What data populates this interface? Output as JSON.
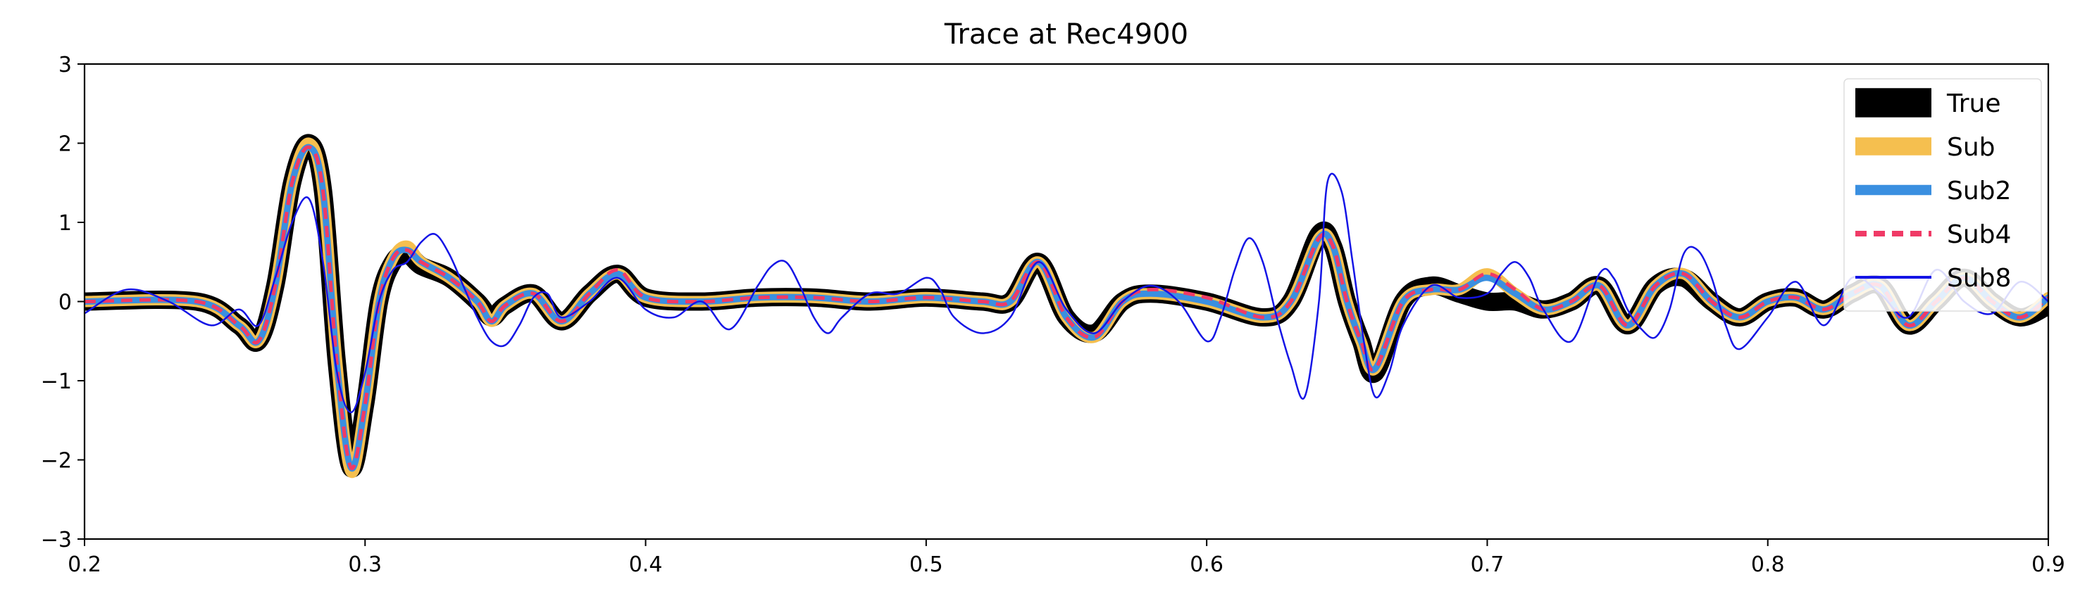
{
  "chart_data": {
    "type": "line",
    "title": "Trace at Rec4900",
    "xlabel": "",
    "ylabel": "",
    "xlim": [
      0.2,
      0.9
    ],
    "ylim": [
      -3,
      3
    ],
    "x_ticks": [
      "0.2",
      "0.3",
      "0.4",
      "0.5",
      "0.6",
      "0.7",
      "0.8",
      "0.9"
    ],
    "y_ticks": [
      "−3",
      "−2",
      "−1",
      "0",
      "1",
      "2",
      "3"
    ],
    "legend_position": "top-right",
    "grid": false,
    "series": [
      {
        "name": "True",
        "color": "#000000",
        "style": "solid-thick",
        "x": [
          0.2,
          0.24,
          0.255,
          0.262,
          0.268,
          0.274,
          0.28,
          0.285,
          0.29,
          0.295,
          0.3,
          0.305,
          0.31,
          0.315,
          0.32,
          0.33,
          0.34,
          0.345,
          0.35,
          0.36,
          0.37,
          0.38,
          0.39,
          0.4,
          0.42,
          0.44,
          0.46,
          0.48,
          0.5,
          0.52,
          0.53,
          0.54,
          0.55,
          0.56,
          0.57,
          0.58,
          0.6,
          0.62,
          0.63,
          0.64,
          0.645,
          0.65,
          0.655,
          0.66,
          0.67,
          0.68,
          0.69,
          0.7,
          0.71,
          0.72,
          0.73,
          0.74,
          0.75,
          0.76,
          0.77,
          0.78,
          0.79,
          0.8,
          0.81,
          0.82,
          0.83,
          0.84,
          0.85,
          0.86,
          0.87,
          0.88,
          0.89,
          0.9
        ],
        "y": [
          0.0,
          0.0,
          -0.3,
          -0.5,
          0.2,
          1.5,
          2.0,
          1.4,
          -0.8,
          -2.1,
          -1.3,
          0.0,
          0.5,
          0.6,
          0.45,
          0.3,
          0.0,
          -0.2,
          -0.05,
          0.1,
          -0.25,
          0.1,
          0.35,
          0.05,
          0.0,
          0.05,
          0.05,
          0.0,
          0.05,
          0.0,
          0.0,
          0.5,
          -0.2,
          -0.4,
          0.0,
          0.1,
          0.0,
          -0.2,
          0.0,
          0.85,
          0.7,
          0.0,
          -0.5,
          -0.9,
          0.0,
          0.2,
          0.1,
          0.0,
          0.0,
          -0.1,
          0.0,
          0.2,
          -0.3,
          0.2,
          0.3,
          0.0,
          -0.2,
          0.0,
          0.05,
          -0.1,
          0.1,
          0.2,
          -0.3,
          0.0,
          0.3,
          0.0,
          -0.2,
          -0.05
        ]
      },
      {
        "name": "Sub",
        "color": "#f5bf4f",
        "style": "solid-medium",
        "x": [
          0.2,
          0.24,
          0.255,
          0.262,
          0.268,
          0.274,
          0.28,
          0.285,
          0.29,
          0.295,
          0.3,
          0.305,
          0.31,
          0.315,
          0.32,
          0.33,
          0.34,
          0.345,
          0.35,
          0.36,
          0.37,
          0.38,
          0.39,
          0.4,
          0.42,
          0.44,
          0.46,
          0.48,
          0.5,
          0.52,
          0.53,
          0.54,
          0.55,
          0.56,
          0.57,
          0.58,
          0.6,
          0.62,
          0.63,
          0.64,
          0.645,
          0.65,
          0.655,
          0.66,
          0.67,
          0.68,
          0.69,
          0.7,
          0.71,
          0.72,
          0.73,
          0.74,
          0.75,
          0.76,
          0.77,
          0.78,
          0.79,
          0.8,
          0.81,
          0.82,
          0.83,
          0.84,
          0.85,
          0.86,
          0.87,
          0.88,
          0.89,
          0.9
        ],
        "y": [
          0.0,
          0.0,
          -0.3,
          -0.5,
          0.2,
          1.5,
          2.0,
          1.4,
          -0.8,
          -2.15,
          -1.3,
          0.0,
          0.55,
          0.7,
          0.5,
          0.3,
          0.0,
          -0.25,
          -0.05,
          0.1,
          -0.25,
          0.1,
          0.35,
          0.05,
          0.0,
          0.05,
          0.05,
          0.0,
          0.05,
          0.0,
          0.0,
          0.5,
          -0.2,
          -0.45,
          0.0,
          0.1,
          0.0,
          -0.2,
          0.0,
          0.8,
          0.7,
          0.0,
          -0.5,
          -0.85,
          0.0,
          0.15,
          0.15,
          0.35,
          0.1,
          -0.1,
          0.0,
          0.2,
          -0.3,
          0.2,
          0.35,
          0.0,
          -0.2,
          0.0,
          0.05,
          -0.1,
          0.1,
          0.2,
          -0.3,
          0.0,
          0.3,
          0.0,
          -0.2,
          0.05
        ]
      },
      {
        "name": "Sub2",
        "color": "#3a8fe0",
        "style": "solid-thin",
        "x": [
          0.2,
          0.24,
          0.255,
          0.262,
          0.268,
          0.274,
          0.28,
          0.285,
          0.29,
          0.295,
          0.3,
          0.305,
          0.31,
          0.315,
          0.32,
          0.33,
          0.34,
          0.345,
          0.35,
          0.36,
          0.37,
          0.38,
          0.39,
          0.4,
          0.42,
          0.44,
          0.46,
          0.48,
          0.5,
          0.52,
          0.53,
          0.54,
          0.55,
          0.56,
          0.57,
          0.58,
          0.6,
          0.62,
          0.63,
          0.64,
          0.645,
          0.65,
          0.655,
          0.66,
          0.67,
          0.68,
          0.69,
          0.7,
          0.71,
          0.72,
          0.73,
          0.74,
          0.75,
          0.76,
          0.77,
          0.78,
          0.79,
          0.8,
          0.81,
          0.82,
          0.83,
          0.84,
          0.85,
          0.86,
          0.87,
          0.88,
          0.89,
          0.9
        ],
        "y": [
          0.0,
          0.0,
          -0.3,
          -0.5,
          0.2,
          1.5,
          1.95,
          1.4,
          -0.8,
          -2.1,
          -1.3,
          0.0,
          0.55,
          0.65,
          0.5,
          0.3,
          0.0,
          -0.25,
          -0.05,
          0.1,
          -0.25,
          0.1,
          0.35,
          0.05,
          0.0,
          0.05,
          0.05,
          0.0,
          0.05,
          0.0,
          0.0,
          0.5,
          -0.2,
          -0.45,
          0.0,
          0.1,
          0.0,
          -0.2,
          0.0,
          0.8,
          0.7,
          0.0,
          -0.5,
          -0.85,
          0.0,
          0.15,
          0.15,
          0.3,
          0.1,
          -0.1,
          0.0,
          0.2,
          -0.3,
          0.2,
          0.35,
          0.0,
          -0.2,
          0.0,
          0.05,
          -0.1,
          0.1,
          0.2,
          -0.3,
          0.0,
          0.3,
          0.0,
          -0.2,
          0.05
        ]
      },
      {
        "name": "Sub4",
        "color": "#f03a66",
        "style": "dashed",
        "x": [
          0.2,
          0.24,
          0.255,
          0.262,
          0.268,
          0.274,
          0.28,
          0.285,
          0.29,
          0.295,
          0.3,
          0.305,
          0.31,
          0.315,
          0.32,
          0.33,
          0.34,
          0.345,
          0.35,
          0.36,
          0.37,
          0.38,
          0.39,
          0.4,
          0.42,
          0.44,
          0.46,
          0.48,
          0.5,
          0.52,
          0.53,
          0.54,
          0.55,
          0.56,
          0.57,
          0.58,
          0.6,
          0.62,
          0.63,
          0.64,
          0.645,
          0.65,
          0.655,
          0.66,
          0.67,
          0.68,
          0.69,
          0.7,
          0.71,
          0.72,
          0.73,
          0.74,
          0.75,
          0.76,
          0.77,
          0.78,
          0.79,
          0.8,
          0.81,
          0.82,
          0.83,
          0.84,
          0.85,
          0.86,
          0.87,
          0.88,
          0.89,
          0.9
        ],
        "y": [
          0.0,
          0.0,
          -0.3,
          -0.5,
          0.2,
          1.5,
          1.95,
          1.4,
          -0.8,
          -2.1,
          -1.3,
          0.0,
          0.55,
          0.65,
          0.5,
          0.3,
          0.0,
          -0.25,
          -0.05,
          0.1,
          -0.25,
          0.1,
          0.4,
          0.05,
          0.0,
          0.05,
          0.05,
          0.0,
          0.05,
          0.0,
          0.0,
          0.5,
          -0.2,
          -0.45,
          0.0,
          0.15,
          0.05,
          -0.2,
          0.0,
          0.8,
          0.7,
          0.0,
          -0.5,
          -0.85,
          0.0,
          0.15,
          0.15,
          0.35,
          0.15,
          -0.1,
          0.0,
          0.2,
          -0.3,
          0.2,
          0.35,
          0.0,
          -0.2,
          0.0,
          0.05,
          -0.1,
          0.1,
          0.2,
          -0.3,
          0.0,
          0.3,
          0.0,
          -0.2,
          0.05
        ]
      },
      {
        "name": "Sub8",
        "color": "#1414e6",
        "style": "solid-hairline",
        "x": [
          0.2,
          0.215,
          0.23,
          0.245,
          0.255,
          0.262,
          0.268,
          0.274,
          0.28,
          0.285,
          0.29,
          0.295,
          0.3,
          0.305,
          0.31,
          0.315,
          0.32,
          0.325,
          0.33,
          0.335,
          0.34,
          0.345,
          0.35,
          0.355,
          0.36,
          0.365,
          0.37,
          0.38,
          0.39,
          0.4,
          0.41,
          0.42,
          0.43,
          0.44,
          0.445,
          0.45,
          0.455,
          0.46,
          0.465,
          0.47,
          0.48,
          0.49,
          0.5,
          0.505,
          0.51,
          0.52,
          0.53,
          0.54,
          0.55,
          0.56,
          0.57,
          0.58,
          0.59,
          0.6,
          0.605,
          0.61,
          0.615,
          0.62,
          0.625,
          0.63,
          0.635,
          0.64,
          0.643,
          0.648,
          0.652,
          0.656,
          0.66,
          0.665,
          0.67,
          0.68,
          0.69,
          0.7,
          0.705,
          0.71,
          0.715,
          0.72,
          0.73,
          0.74,
          0.745,
          0.75,
          0.755,
          0.76,
          0.765,
          0.77,
          0.775,
          0.78,
          0.785,
          0.79,
          0.8,
          0.81,
          0.82,
          0.83,
          0.84,
          0.85,
          0.86,
          0.87,
          0.88,
          0.89,
          0.9
        ],
        "y": [
          -0.15,
          0.15,
          0.0,
          -0.3,
          -0.1,
          -0.3,
          0.3,
          1.0,
          1.3,
          0.5,
          -0.9,
          -1.4,
          -0.9,
          0.0,
          0.4,
          0.5,
          0.75,
          0.85,
          0.6,
          0.2,
          -0.2,
          -0.5,
          -0.55,
          -0.3,
          0.05,
          0.1,
          -0.2,
          0.0,
          0.3,
          -0.1,
          -0.2,
          0.0,
          -0.35,
          0.2,
          0.45,
          0.5,
          0.2,
          -0.2,
          -0.4,
          -0.2,
          0.1,
          0.1,
          0.3,
          0.15,
          -0.2,
          -0.4,
          -0.2,
          0.5,
          -0.1,
          -0.4,
          0.0,
          0.2,
          0.0,
          -0.5,
          -0.2,
          0.4,
          0.8,
          0.5,
          -0.2,
          -0.8,
          -1.2,
          0.0,
          1.5,
          1.4,
          0.5,
          -0.5,
          -1.2,
          -0.9,
          -0.3,
          0.2,
          0.05,
          0.1,
          0.35,
          0.5,
          0.3,
          -0.1,
          -0.5,
          0.35,
          0.3,
          -0.1,
          -0.35,
          -0.45,
          -0.1,
          0.6,
          0.65,
          0.3,
          -0.3,
          -0.6,
          -0.2,
          0.25,
          -0.3,
          0.3,
          0.1,
          -0.2,
          0.4,
          0.0,
          -0.15,
          0.25,
          0.0
        ]
      }
    ]
  }
}
